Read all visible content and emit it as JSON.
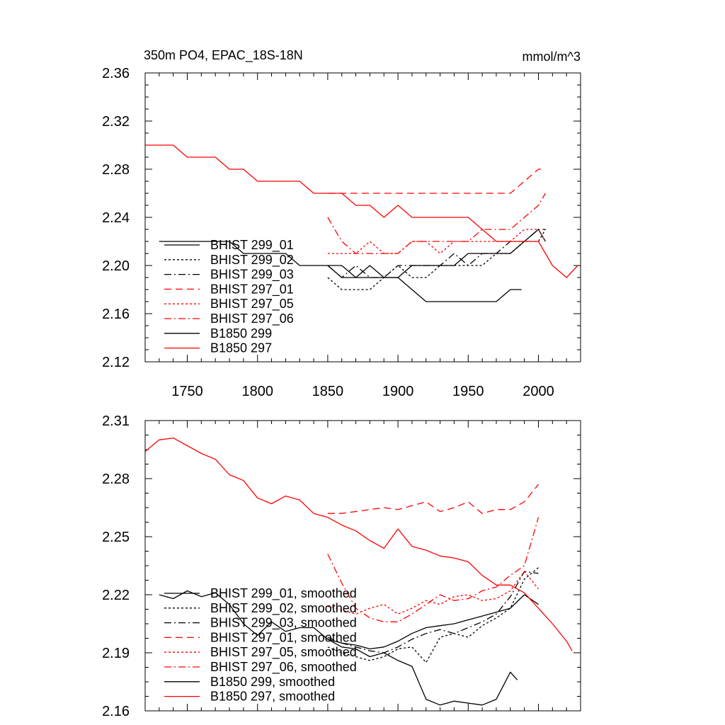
{
  "chart_data": [
    {
      "type": "line",
      "title": "350m PO4, EPAC_18S-18N",
      "units": "mmol/m^3",
      "xlim": [
        1720,
        2030
      ],
      "ylim": [
        2.12,
        2.36
      ],
      "x_ticks": [
        1750,
        1800,
        1850,
        1900,
        1950,
        2000
      ],
      "y_ticks": [
        "2.12",
        "2.16",
        "2.20",
        "2.24",
        "2.28",
        "2.32",
        "2.36"
      ],
      "grid": false,
      "legend_position": "bottom-left",
      "series": [
        {
          "name": "BHIST 299_01",
          "color": "#000000",
          "dash": "solid",
          "x": [
            1850,
            1860,
            1870,
            1880,
            1890,
            1900,
            1910,
            1920,
            1930,
            1940,
            1950,
            1960,
            1970,
            1980,
            1990,
            2000,
            2005
          ],
          "y": [
            2.2,
            2.19,
            2.19,
            2.2,
            2.19,
            2.19,
            2.2,
            2.2,
            2.2,
            2.2,
            2.21,
            2.21,
            2.21,
            2.21,
            2.22,
            2.23,
            2.22
          ]
        },
        {
          "name": "BHIST 299_02",
          "color": "#000000",
          "dash": "short",
          "x": [
            1850,
            1860,
            1870,
            1880,
            1890,
            1900,
            1910,
            1920,
            1930,
            1940,
            1950,
            1960,
            1970,
            1980,
            1990,
            2000,
            2005
          ],
          "y": [
            2.19,
            2.18,
            2.18,
            2.18,
            2.19,
            2.2,
            2.19,
            2.19,
            2.2,
            2.2,
            2.2,
            2.2,
            2.21,
            2.21,
            2.22,
            2.22,
            2.23
          ]
        },
        {
          "name": "BHIST 299_03",
          "color": "#000000",
          "dash": "dashdot",
          "x": [
            1850,
            1860,
            1870,
            1880,
            1890,
            1900,
            1910,
            1920,
            1930,
            1940,
            1950,
            1960,
            1970,
            1980,
            1990,
            2000,
            2005
          ],
          "y": [
            2.2,
            2.19,
            2.2,
            2.19,
            2.19,
            2.2,
            2.2,
            2.2,
            2.2,
            2.21,
            2.2,
            2.21,
            2.21,
            2.22,
            2.22,
            2.23,
            2.23
          ]
        },
        {
          "name": "BHIST 297_01",
          "color": "#ff0000",
          "dash": "long",
          "x": [
            1850,
            1860,
            1870,
            1880,
            1890,
            1900,
            1910,
            1920,
            1930,
            1940,
            1950,
            1960,
            1970,
            1980,
            1990,
            2000,
            2005
          ],
          "y": [
            2.26,
            2.26,
            2.26,
            2.26,
            2.26,
            2.26,
            2.26,
            2.26,
            2.26,
            2.26,
            2.26,
            2.26,
            2.26,
            2.26,
            2.27,
            2.28,
            2.28
          ]
        },
        {
          "name": "BHIST 297_05",
          "color": "#ff0000",
          "dash": "short",
          "x": [
            1850,
            1860,
            1870,
            1880,
            1890,
            1900,
            1910,
            1920,
            1930,
            1940,
            1950,
            1960,
            1970,
            1980,
            1990,
            2000,
            2005
          ],
          "y": [
            2.21,
            2.21,
            2.21,
            2.22,
            2.21,
            2.21,
            2.22,
            2.22,
            2.21,
            2.22,
            2.22,
            2.22,
            2.22,
            2.22,
            2.23,
            2.23,
            2.22
          ]
        },
        {
          "name": "BHIST 297_06",
          "color": "#ff0000",
          "dash": "dashdot",
          "x": [
            1850,
            1860,
            1870,
            1880,
            1890,
            1900,
            1910,
            1920,
            1930,
            1940,
            1950,
            1960,
            1970,
            1980,
            1990,
            2000,
            2005
          ],
          "y": [
            2.24,
            2.22,
            2.21,
            2.21,
            2.21,
            2.21,
            2.22,
            2.22,
            2.22,
            2.22,
            2.22,
            2.23,
            2.23,
            2.23,
            2.24,
            2.25,
            2.26
          ]
        },
        {
          "name": "B1850 299",
          "color": "#000000",
          "dash": "solid",
          "x": [
            1730,
            1740,
            1750,
            1760,
            1770,
            1780,
            1790,
            1800,
            1810,
            1820,
            1830,
            1840,
            1850,
            1860,
            1870,
            1880,
            1890,
            1900,
            1910,
            1920,
            1930,
            1940,
            1950,
            1960,
            1970,
            1980,
            1988
          ],
          "y": [
            2.22,
            2.22,
            2.22,
            2.22,
            2.22,
            2.22,
            2.21,
            2.21,
            2.21,
            2.21,
            2.2,
            2.2,
            2.2,
            2.2,
            2.19,
            2.19,
            2.19,
            2.19,
            2.18,
            2.17,
            2.17,
            2.17,
            2.17,
            2.17,
            2.17,
            2.18,
            2.18
          ]
        },
        {
          "name": "B1850 297",
          "color": "#ff0000",
          "dash": "solid",
          "x": [
            1720,
            1730,
            1740,
            1750,
            1760,
            1770,
            1780,
            1790,
            1800,
            1810,
            1820,
            1830,
            1840,
            1850,
            1860,
            1870,
            1880,
            1890,
            1900,
            1910,
            1920,
            1930,
            1940,
            1950,
            1960,
            1970,
            1980,
            1990,
            2000,
            2010,
            2020,
            2028
          ],
          "y": [
            2.3,
            2.3,
            2.3,
            2.29,
            2.29,
            2.29,
            2.28,
            2.28,
            2.27,
            2.27,
            2.27,
            2.27,
            2.26,
            2.26,
            2.26,
            2.25,
            2.25,
            2.24,
            2.25,
            2.24,
            2.24,
            2.24,
            2.24,
            2.24,
            2.23,
            2.22,
            2.22,
            2.22,
            2.22,
            2.2,
            2.19,
            2.2
          ]
        }
      ]
    },
    {
      "type": "line",
      "title": "",
      "xlim": [
        1720,
        2030
      ],
      "ylim": [
        2.16,
        2.31
      ],
      "y_ticks": [
        "2.16",
        "2.19",
        "2.22",
        "2.25",
        "2.28",
        "2.31"
      ],
      "grid": false,
      "legend_position": "bottom-left",
      "series": [
        {
          "name": "BHIST 299_01, smoothed",
          "color": "#000000",
          "dash": "solid",
          "x": [
            1850,
            1860,
            1870,
            1880,
            1890,
            1900,
            1910,
            1920,
            1930,
            1940,
            1950,
            1960,
            1970,
            1980,
            1990,
            2000
          ],
          "y": [
            2.197,
            2.195,
            2.194,
            2.192,
            2.193,
            2.196,
            2.2,
            2.203,
            2.204,
            2.205,
            2.207,
            2.209,
            2.211,
            2.213,
            2.22,
            2.215
          ]
        },
        {
          "name": "BHIST 299_02, smoothed",
          "color": "#000000",
          "dash": "short",
          "x": [
            1850,
            1860,
            1870,
            1880,
            1890,
            1900,
            1910,
            1920,
            1930,
            1940,
            1950,
            1960,
            1970,
            1980,
            1990,
            2000
          ],
          "y": [
            2.193,
            2.19,
            2.188,
            2.186,
            2.188,
            2.192,
            2.193,
            2.185,
            2.198,
            2.2,
            2.198,
            2.204,
            2.208,
            2.213,
            2.228,
            2.234
          ]
        },
        {
          "name": "BHIST 299_03, smoothed",
          "color": "#000000",
          "dash": "dashdot",
          "x": [
            1850,
            1860,
            1870,
            1880,
            1890,
            1900,
            1910,
            1920,
            1930,
            1940,
            1950,
            1960,
            1970,
            1980,
            1990,
            2000
          ],
          "y": [
            2.198,
            2.195,
            2.193,
            2.191,
            2.19,
            2.193,
            2.197,
            2.2,
            2.202,
            2.2,
            2.203,
            2.206,
            2.21,
            2.219,
            2.232,
            2.231
          ]
        },
        {
          "name": "BHIST 297_01, smoothed",
          "color": "#ff0000",
          "dash": "long",
          "x": [
            1850,
            1860,
            1870,
            1880,
            1890,
            1900,
            1910,
            1920,
            1930,
            1940,
            1950,
            1960,
            1970,
            1980,
            1990,
            2000
          ],
          "y": [
            2.262,
            2.262,
            2.263,
            2.264,
            2.265,
            2.264,
            2.266,
            2.268,
            2.263,
            2.265,
            2.268,
            2.262,
            2.264,
            2.264,
            2.268,
            2.277
          ]
        },
        {
          "name": "BHIST 297_05, smoothed",
          "color": "#ff0000",
          "dash": "short",
          "x": [
            1850,
            1860,
            1870,
            1880,
            1890,
            1900,
            1910,
            1920,
            1930,
            1940,
            1950,
            1960,
            1970,
            1980,
            1990,
            2000
          ],
          "y": [
            2.214,
            2.212,
            2.21,
            2.213,
            2.215,
            2.21,
            2.213,
            2.217,
            2.215,
            2.219,
            2.22,
            2.217,
            2.218,
            2.222,
            2.232,
            2.223
          ]
        },
        {
          "name": "BHIST 297_06, smoothed",
          "color": "#ff0000",
          "dash": "dashdot",
          "x": [
            1850,
            1860,
            1870,
            1880,
            1890,
            1900,
            1910,
            1920,
            1930,
            1940,
            1950,
            1960,
            1970,
            1980,
            1990,
            2000
          ],
          "y": [
            2.241,
            2.226,
            2.213,
            2.208,
            2.206,
            2.206,
            2.21,
            2.215,
            2.22,
            2.217,
            2.218,
            2.222,
            2.224,
            2.23,
            2.235,
            2.26
          ]
        },
        {
          "name": "B1850 299, smoothed",
          "color": "#000000",
          "dash": "solid",
          "x": [
            1730,
            1740,
            1750,
            1760,
            1770,
            1780,
            1790,
            1800,
            1810,
            1820,
            1830,
            1840,
            1850,
            1860,
            1870,
            1880,
            1890,
            1900,
            1910,
            1920,
            1930,
            1940,
            1950,
            1960,
            1970,
            1980,
            1985
          ],
          "y": [
            2.22,
            2.218,
            2.222,
            2.219,
            2.221,
            2.215,
            2.205,
            2.199,
            2.206,
            2.201,
            2.203,
            2.203,
            2.197,
            2.193,
            2.192,
            2.188,
            2.19,
            2.186,
            2.183,
            2.166,
            2.163,
            2.165,
            2.164,
            2.163,
            2.166,
            2.18,
            2.176
          ]
        },
        {
          "name": "B1850 297, smoothed",
          "color": "#ff0000",
          "dash": "solid",
          "x": [
            1720,
            1730,
            1740,
            1750,
            1760,
            1770,
            1780,
            1790,
            1800,
            1810,
            1820,
            1830,
            1840,
            1850,
            1860,
            1870,
            1880,
            1890,
            1900,
            1910,
            1920,
            1930,
            1940,
            1950,
            1960,
            1970,
            1980,
            1990,
            2000,
            2010,
            2020,
            2024
          ],
          "y": [
            2.294,
            2.3,
            2.301,
            2.297,
            2.293,
            2.29,
            2.282,
            2.279,
            2.27,
            2.267,
            2.271,
            2.269,
            2.262,
            2.26,
            2.256,
            2.253,
            2.248,
            2.244,
            2.254,
            2.245,
            2.243,
            2.24,
            2.239,
            2.237,
            2.23,
            2.225,
            2.225,
            2.221,
            2.213,
            2.205,
            2.196,
            2.191
          ]
        }
      ]
    }
  ]
}
